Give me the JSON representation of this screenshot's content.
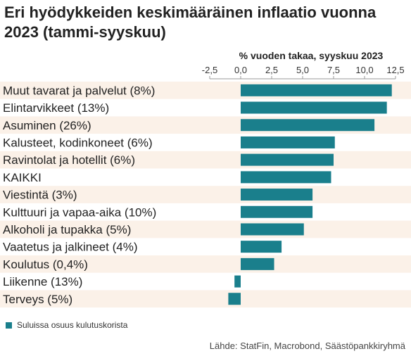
{
  "title": "Eri hyödykkeiden keskimääräinen inflaatio vuonna 2023 (tammi-syyskuu)",
  "legend": {
    "label": "Suluissa osuus kulutuskorista"
  },
  "source": "Lähde: StatFin, Macrobond, Säästöpankkiryhmä",
  "colors": {
    "bar": "#1a7f8c",
    "band": "#fbf1e8",
    "text": "#222222"
  },
  "chart_data": {
    "type": "bar",
    "orientation": "horizontal",
    "title": "Eri hyödykkeiden keskimääräinen inflaatio vuonna 2023 (tammi-syyskuu)",
    "xlabel": "% vuoden takaa, syyskuu 2023",
    "xlim": [
      -2.5,
      12.5
    ],
    "xticks": [
      "-2,5",
      "0,0",
      "2,5",
      "5,0",
      "7,5",
      "10,0",
      "12,5"
    ],
    "xtick_values": [
      -2.5,
      0,
      2.5,
      5,
      7.5,
      10,
      12.5
    ],
    "categories": [
      "Muut tavarat ja palvelut (8%)",
      "Elintarvikkeet (13%)",
      "Asuminen (26%)",
      "Kalusteet, kodinkoneet (6%)",
      "Ravintolat ja hotellit (6%)",
      "KAIKKI",
      "Viestintä (3%)",
      "Kulttuuri ja vapaa-aika (10%)",
      "Alkoholi ja tupakka (5%)",
      "Vaatetus ja jalkineet (4%)",
      "Koulutus (0,4%)",
      "Liikenne (13%)",
      "Terveys (5%)"
    ],
    "values": [
      12.2,
      11.8,
      10.8,
      7.6,
      7.5,
      7.3,
      5.8,
      5.8,
      5.1,
      3.3,
      2.7,
      -0.5,
      -1.0
    ],
    "legend_position": "bottom-left",
    "grid": false
  }
}
